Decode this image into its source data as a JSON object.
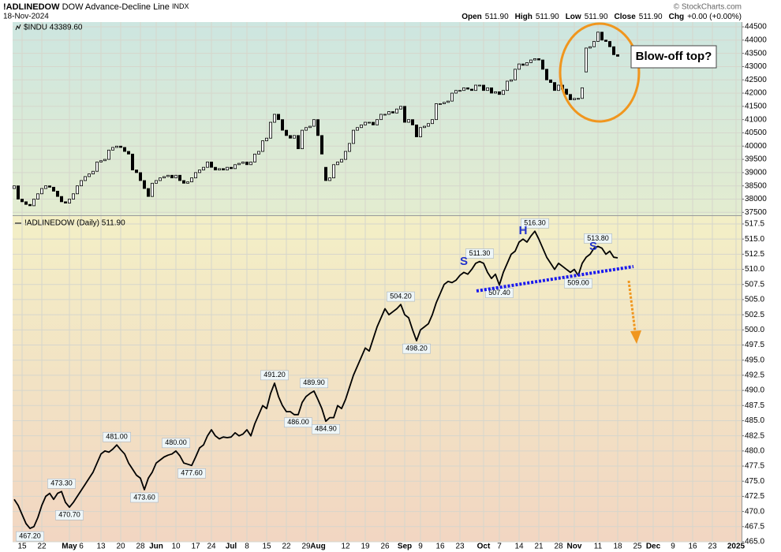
{
  "header": {
    "symbol": "!ADLINEDOW",
    "description": "DOW Advance-Decline Line",
    "exchange": "INDX",
    "date": "18-Nov-2024",
    "copyright": "© StockCharts.com",
    "quote": [
      {
        "label": "Open",
        "value": "511.90"
      },
      {
        "label": "High",
        "value": "511.90"
      },
      {
        "label": "Low",
        "value": "511.90"
      },
      {
        "label": "Close",
        "value": "511.90"
      },
      {
        "label": "Chg",
        "value": "+0.00 (+0.00%)"
      }
    ]
  },
  "chart_data": [
    {
      "type": "candlestick",
      "legend": "$INDU 43389.60",
      "up_color": "#ffffff",
      "down_color": "#000000",
      "open": [
        38400,
        38500,
        38000,
        37900,
        37800,
        37750,
        38000,
        38200,
        38400,
        38500,
        38450,
        38300,
        38100,
        37900,
        37850,
        38000,
        38200,
        38500,
        38700,
        38850,
        38950,
        39050,
        39400,
        39450,
        39500,
        39850,
        39950,
        40000,
        39950,
        39800,
        39700,
        39100,
        39000,
        38700,
        38400,
        38100,
        38600,
        38700,
        38800,
        38850,
        38900,
        38800,
        38900,
        38700,
        38600,
        38650,
        38800,
        39000,
        39100,
        39200,
        39400,
        39200,
        39100,
        39150,
        39100,
        39200,
        39150,
        39300,
        39350,
        39400,
        39300,
        39400,
        39700,
        39800,
        40200,
        40300,
        40900,
        41200,
        41000,
        40600,
        40400,
        40300,
        40400,
        39900,
        40600,
        40700,
        40750,
        41000,
        40400,
        39200,
        38700,
        38800,
        39300,
        39400,
        39500,
        39800,
        40100,
        40600,
        40700,
        40800,
        40900,
        40900,
        40800,
        41000,
        41200,
        41200,
        41300,
        41250,
        41400,
        41500,
        40900,
        41000,
        40800,
        40350,
        40700,
        40750,
        40850,
        41000,
        41600,
        41600,
        41650,
        41700,
        42000,
        42100,
        42100,
        42200,
        42150,
        42100,
        42300,
        42300,
        42100,
        42200,
        42000,
        42050,
        41950,
        42100,
        42450,
        42500,
        42900,
        43100,
        43050,
        43150,
        43250,
        43300,
        43250,
        42900,
        42500,
        42400,
        42100,
        42300,
        42150,
        41950,
        41750,
        41800,
        41800,
        42800,
        43700,
        43750,
        43950,
        44300,
        44000,
        43950,
        43750,
        43450
      ],
      "close": [
        38500,
        38000,
        37900,
        37800,
        37750,
        38000,
        38200,
        38400,
        38500,
        38450,
        38300,
        38100,
        37900,
        37850,
        38000,
        38200,
        38500,
        38700,
        38850,
        38950,
        39050,
        39400,
        39450,
        39500,
        39850,
        39950,
        40000,
        39950,
        39800,
        39700,
        39100,
        39000,
        38700,
        38400,
        38100,
        38600,
        38700,
        38800,
        38850,
        38900,
        38800,
        38900,
        38700,
        38600,
        38650,
        38800,
        39000,
        39100,
        39200,
        39400,
        39200,
        39100,
        39150,
        39100,
        39200,
        39150,
        39300,
        39350,
        39400,
        39300,
        39400,
        39700,
        39800,
        40200,
        40300,
        40900,
        41200,
        41000,
        40600,
        40400,
        40300,
        40400,
        39900,
        40600,
        40700,
        40750,
        41000,
        40400,
        39700,
        38700,
        38800,
        39300,
        39400,
        39500,
        39800,
        40100,
        40600,
        40700,
        40800,
        40900,
        40900,
        40800,
        41000,
        41200,
        41200,
        41300,
        41250,
        41400,
        41500,
        40900,
        41000,
        40800,
        40350,
        40700,
        40750,
        40850,
        41000,
        41600,
        41600,
        41650,
        41700,
        42000,
        42100,
        42100,
        42200,
        42150,
        42100,
        42300,
        42300,
        42100,
        42200,
        42000,
        42050,
        41950,
        42100,
        42450,
        42500,
        42900,
        43100,
        43050,
        43150,
        43250,
        43300,
        43250,
        42900,
        42500,
        42400,
        42100,
        42300,
        42150,
        41950,
        41750,
        41800,
        41800,
        42200,
        43700,
        43750,
        43950,
        44300,
        44000,
        43950,
        43750,
        43450,
        43389.6
      ],
      "xlim": [
        -0.4,
        184.4
      ],
      "ylim": [
        37390,
        44680
      ],
      "yticks": [
        37500,
        38000,
        38500,
        39000,
        39500,
        40000,
        40500,
        41000,
        41500,
        42000,
        42500,
        43000,
        43500,
        44000,
        44500
      ],
      "annotations": [
        "Blow-off top?"
      ]
    },
    {
      "type": "line",
      "legend": "!ADLINEDOW (Daily) 511.90",
      "color": "#000000",
      "values": [
        472,
        471,
        469.5,
        468,
        467.2,
        467.5,
        469,
        471,
        472.5,
        473,
        472,
        473,
        473.3,
        471.5,
        470.7,
        471.5,
        472.5,
        473.5,
        474.5,
        475.5,
        476.5,
        478,
        479.5,
        480,
        479.8,
        480.3,
        481,
        480.2,
        479.5,
        478,
        477,
        476,
        475.5,
        473.6,
        475.5,
        476.5,
        478,
        478.5,
        479,
        479.3,
        479.5,
        480,
        479.2,
        478,
        477.8,
        477.6,
        479,
        480.5,
        481,
        482.5,
        483.5,
        482.5,
        482,
        482.3,
        482.2,
        482.3,
        483,
        482.5,
        482.8,
        483.5,
        482.5,
        484.5,
        486,
        487.5,
        487,
        489.5,
        491.2,
        489,
        487.5,
        486.5,
        486.5,
        486,
        486,
        488,
        489,
        489.5,
        489.9,
        488.5,
        487,
        484.9,
        485.5,
        485.5,
        487.5,
        487,
        488.5,
        490.5,
        492.5,
        494,
        495.5,
        497,
        496.5,
        498.5,
        500.5,
        502,
        503.5,
        502.5,
        503,
        503.5,
        504.2,
        502.5,
        502,
        500,
        498.2,
        500,
        500.5,
        501,
        502.5,
        504.5,
        506,
        507.5,
        508,
        507.8,
        508.2,
        509,
        509.5,
        509.2,
        510,
        511,
        511.3,
        511,
        509.5,
        508.5,
        509.2,
        507.4,
        509.5,
        511,
        512.5,
        513,
        514.5,
        515,
        514.5,
        515.5,
        516.3,
        515,
        513.5,
        512,
        511,
        510,
        511,
        510.5,
        510,
        509.5,
        510,
        509,
        511,
        512,
        512.5,
        513.5,
        513.8,
        513.5,
        512.5,
        513,
        512,
        511.9
      ],
      "value_labels": [
        null,
        null,
        null,
        null,
        "467.20",
        null,
        null,
        null,
        null,
        null,
        null,
        null,
        "473.30",
        null,
        "470.70",
        null,
        null,
        null,
        null,
        null,
        null,
        null,
        null,
        null,
        null,
        null,
        "481.00",
        null,
        null,
        null,
        null,
        null,
        null,
        "473.60",
        null,
        null,
        null,
        null,
        null,
        null,
        null,
        "480.00",
        null,
        null,
        null,
        "477.60",
        null,
        null,
        null,
        null,
        null,
        null,
        null,
        null,
        null,
        null,
        null,
        null,
        null,
        null,
        null,
        null,
        null,
        null,
        null,
        null,
        "491.20",
        null,
        null,
        null,
        null,
        null,
        "486.00",
        null,
        null,
        null,
        "489.90",
        null,
        null,
        "484.90",
        null,
        null,
        null,
        null,
        null,
        null,
        null,
        null,
        null,
        null,
        null,
        null,
        null,
        null,
        null,
        null,
        null,
        null,
        "504.20",
        null,
        null,
        null,
        "498.20",
        null,
        null,
        null,
        null,
        null,
        null,
        null,
        null,
        null,
        null,
        null,
        null,
        null,
        null,
        null,
        "511.30",
        null,
        null,
        null,
        null,
        "507.40",
        null,
        null,
        null,
        null,
        null,
        null,
        null,
        null,
        "516.30",
        null,
        null,
        null,
        null,
        null,
        null,
        null,
        null,
        null,
        null,
        "509.00",
        null,
        null,
        null,
        null,
        "513.80",
        null,
        null,
        null,
        null,
        null
      ],
      "xlim": [
        -0.4,
        184.4
      ],
      "ylim": [
        465,
        518.8
      ],
      "yticks": [
        {
          "value": 465,
          "label": "465.0"
        },
        467.5,
        {
          "value": 470,
          "label": "470.0"
        },
        472.5,
        {
          "value": 475,
          "label": "475.0"
        },
        477.5,
        {
          "value": 480,
          "label": "480.0"
        },
        482.5,
        {
          "value": 485,
          "label": "485.0"
        },
        487.5,
        {
          "value": 490,
          "label": "490.0"
        },
        492.5,
        {
          "value": 495,
          "label": "495.0"
        },
        497.5,
        {
          "value": 500,
          "label": "500.0"
        },
        502.5,
        {
          "value": 505,
          "label": "505.0"
        },
        507.5,
        {
          "value": 510,
          "label": "510.0"
        },
        512.5,
        {
          "value": 515,
          "label": "515.0"
        },
        517.5
      ],
      "xticks": [
        {
          "value": 2,
          "label": "15"
        },
        {
          "value": 7,
          "label": "22"
        },
        {
          "value": 14,
          "label": "May"
        },
        {
          "value": 17,
          "label": "6"
        },
        {
          "value": 22,
          "label": "13"
        },
        {
          "value": 27,
          "label": "20"
        },
        {
          "value": 32,
          "label": "28"
        },
        {
          "value": 36,
          "label": "Jun"
        },
        {
          "value": 41,
          "label": "10"
        },
        {
          "value": 46,
          "label": "17"
        },
        {
          "value": 50,
          "label": "24"
        },
        {
          "value": 55,
          "label": "Jul"
        },
        {
          "value": 59,
          "label": "8"
        },
        {
          "value": 64,
          "label": "15"
        },
        {
          "value": 69,
          "label": "22"
        },
        {
          "value": 74,
          "label": "29"
        },
        {
          "value": 77,
          "label": "Aug"
        },
        {
          "value": 84,
          "label": "12"
        },
        {
          "value": 89,
          "label": "19"
        },
        {
          "value": 94,
          "label": "26"
        },
        {
          "value": 99,
          "label": "Sep"
        },
        {
          "value": 103,
          "label": "9"
        },
        {
          "value": 108,
          "label": "16"
        },
        {
          "value": 113,
          "label": "23"
        },
        {
          "value": 119,
          "label": "Oct"
        },
        {
          "value": 123,
          "label": "7"
        },
        {
          "value": 128,
          "label": "14"
        },
        {
          "value": 133,
          "label": "21"
        },
        {
          "value": 138,
          "label": "28"
        },
        {
          "value": 142,
          "label": "Nov"
        },
        {
          "value": 148,
          "label": "11"
        },
        {
          "value": 153,
          "label": "18"
        },
        {
          "value": 158,
          "label": "25"
        },
        {
          "value": 162,
          "label": "Dec"
        },
        {
          "value": 167,
          "label": "9"
        },
        {
          "value": 172,
          "label": "16"
        },
        {
          "value": 177,
          "label": "23"
        },
        {
          "value": 183,
          "label": "2025"
        }
      ],
      "annotations": [
        "S",
        "H",
        "S"
      ]
    }
  ]
}
